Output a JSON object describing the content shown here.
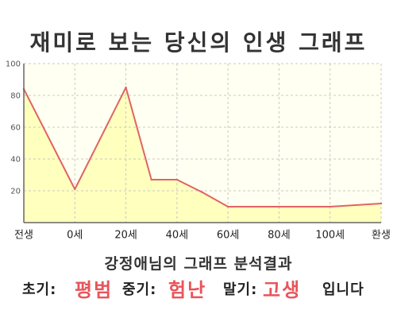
{
  "chart_data": {
    "type": "area",
    "title": "재미로 보는 당신의 인생 그래프",
    "xlabel": "",
    "ylabel": "",
    "xlim": [
      -20,
      120
    ],
    "ylim": [
      0,
      100
    ],
    "grid": true,
    "x_ticks": [
      {
        "value": -20,
        "label": "전생"
      },
      {
        "value": 0,
        "label": "0세"
      },
      {
        "value": 20,
        "label": "20세"
      },
      {
        "value": 40,
        "label": "40세"
      },
      {
        "value": 60,
        "label": "60세"
      },
      {
        "value": 80,
        "label": "80세"
      },
      {
        "value": 100,
        "label": "100세"
      },
      {
        "value": 120,
        "label": "환생"
      }
    ],
    "y_ticks": [
      20,
      40,
      60,
      80,
      100
    ],
    "x": [
      -20,
      0,
      20,
      30,
      40,
      50,
      60,
      80,
      100,
      120
    ],
    "series": [
      {
        "values": [
          84,
          21,
          85,
          27,
          27,
          19,
          10,
          10,
          10,
          12
        ],
        "color": "#e06464",
        "fill": "#ffffbe"
      }
    ]
  },
  "result": {
    "heading": "강정애님의 그래프 분석결과",
    "early_label": "초기:",
    "early_value": "평범",
    "mid_label": "중기:",
    "mid_value": "험난",
    "late_label": "말기:",
    "late_value": "고생",
    "suffix": "입니다"
  },
  "colors": {
    "highlight": "#e8545a",
    "plot_background": "#fffff2",
    "grid": "#c8c8c8",
    "axis": "#666666"
  }
}
